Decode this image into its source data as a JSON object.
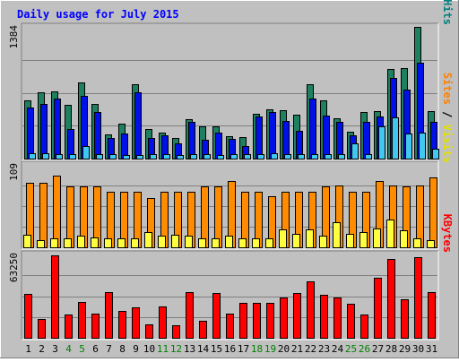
{
  "chart_data": {
    "type": "bar",
    "title": "Daily usage for July 2015",
    "categories": [
      "1",
      "2",
      "3",
      "4",
      "5",
      "6",
      "7",
      "8",
      "9",
      "10",
      "11",
      "12",
      "13",
      "14",
      "15",
      "16",
      "17",
      "18",
      "19",
      "20",
      "21",
      "22",
      "23",
      "24",
      "25",
      "26",
      "27",
      "28",
      "29",
      "30",
      "31"
    ],
    "weekend_days": [
      "4",
      "5",
      "11",
      "12",
      "18",
      "19",
      "25",
      "26"
    ],
    "panels": [
      {
        "name": "pages-files-hits",
        "ymax_label": "1384",
        "ylim": [
          0,
          1384
        ],
        "label_parts": [
          {
            "text": "Pages",
            "color": "#00c0ff"
          },
          {
            "text": " / ",
            "color": "#000000"
          },
          {
            "text": "Files",
            "color": "#0000ff"
          },
          {
            "text": " / ",
            "color": "#000000"
          },
          {
            "text": "Hits",
            "color": "#008080"
          }
        ],
        "series": [
          {
            "name": "Hits",
            "color": "#1e8060",
            "values": [
              611,
              693,
              710,
              565,
              796,
              570,
              256,
              370,
              780,
              312,
              269,
              218,
              412,
              339,
              342,
              237,
              230,
              467,
              516,
              512,
              464,
              779,
              609,
              420,
              282,
              492,
              497,
              938,
              950,
              1384,
              497
            ]
          },
          {
            "name": "Files",
            "color": "#0010e8",
            "values": [
              532,
              579,
              634,
              312,
              658,
              486,
              219,
              266,
              694,
              219,
              245,
              162,
              388,
              197,
              276,
              207,
              134,
              445,
              485,
              399,
              292,
              629,
              453,
              385,
              246,
              387,
              446,
              851,
              727,
              1012,
              384
            ]
          },
          {
            "name": "Pages",
            "color": "#40c8f0",
            "values": [
              52,
              53,
              51,
              43,
              134,
              47,
              44,
              35,
              42,
              44,
              43,
              41,
              43,
              43,
              42,
              43,
              43,
              44,
              55,
              44,
              44,
              44,
              44,
              44,
              162,
              44,
              341,
              429,
              268,
              271,
              105
            ]
          }
        ]
      },
      {
        "name": "sites-visits",
        "ymax_label": "109",
        "ylim": [
          0,
          109
        ],
        "label_parts": [
          {
            "text": "Sites",
            "color": "#ff8000"
          },
          {
            "text": " / ",
            "color": "#000000"
          },
          {
            "text": "Visits",
            "color": "#e0e000"
          }
        ],
        "series": [
          {
            "name": "Visits",
            "color": "#ff8c00",
            "values": [
              85,
              85,
              95,
              80,
              80,
              80,
              74,
              74,
              74,
              65,
              74,
              74,
              74,
              80,
              80,
              88,
              74,
              74,
              67,
              74,
              74,
              74,
              80,
              82,
              74,
              74,
              88,
              82,
              80,
              82,
              92
            ]
          },
          {
            "name": "Sites",
            "color": "#ffff40",
            "values": [
              16,
              10,
              12,
              12,
              15,
              13,
              12,
              12,
              12,
              20,
              15,
              16,
              15,
              12,
              12,
              15,
              12,
              12,
              12,
              24,
              18,
              24,
              15,
              33,
              18,
              20,
              25,
              37,
              22,
              12,
              10
            ]
          }
        ]
      },
      {
        "name": "kbytes",
        "ymax_label": "63250",
        "ylim": [
          0,
          63250
        ],
        "label_parts": [
          {
            "text": "KBytes",
            "color": "#ff0000"
          }
        ],
        "series": [
          {
            "name": "KBytes",
            "color": "#ff0000",
            "values": [
              33000,
              14200,
              62500,
              18000,
              27400,
              18500,
              34900,
              20600,
              22800,
              10400,
              23700,
              9620,
              34400,
              12800,
              34200,
              18200,
              26700,
              26700,
              26300,
              30800,
              33700,
              42900,
              32900,
              30800,
              25600,
              17600,
              45700,
              59600,
              29100,
              61200,
              34400
            ]
          }
        ]
      }
    ]
  }
}
